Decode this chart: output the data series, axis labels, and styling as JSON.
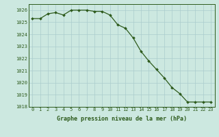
{
  "hours": [
    0,
    1,
    2,
    3,
    4,
    5,
    6,
    7,
    8,
    9,
    10,
    11,
    12,
    13,
    14,
    15,
    16,
    17,
    18,
    19,
    20,
    21,
    22,
    23
  ],
  "pressures": [
    1025.3,
    1025.3,
    1025.7,
    1025.8,
    1025.6,
    1026.0,
    1026.0,
    1026.0,
    1025.9,
    1025.9,
    1025.6,
    1024.8,
    1024.5,
    1023.7,
    1022.6,
    1021.8,
    1021.1,
    1020.4,
    1019.6,
    1019.1,
    1018.4,
    1018.4,
    1018.4,
    1018.4
  ],
  "line_color": "#2d5a1b",
  "marker_color": "#2d5a1b",
  "bg_color": "#cce8e0",
  "grid_color": "#aacccc",
  "tick_color": "#2d5a1b",
  "xlabel": "Graphe pression niveau de la mer (hPa)",
  "xlabel_color": "#2d5a1b",
  "border_color": "#2d5a1b",
  "ylim_min": 1018,
  "ylim_max": 1026.5,
  "yticks": [
    1018,
    1019,
    1020,
    1021,
    1022,
    1023,
    1024,
    1025,
    1026
  ],
  "xticks": [
    0,
    1,
    2,
    3,
    4,
    5,
    6,
    7,
    8,
    9,
    10,
    11,
    12,
    13,
    14,
    15,
    16,
    17,
    18,
    19,
    20,
    21,
    22,
    23
  ],
  "tick_fontsize": 5.0,
  "xlabel_fontsize": 6.0
}
